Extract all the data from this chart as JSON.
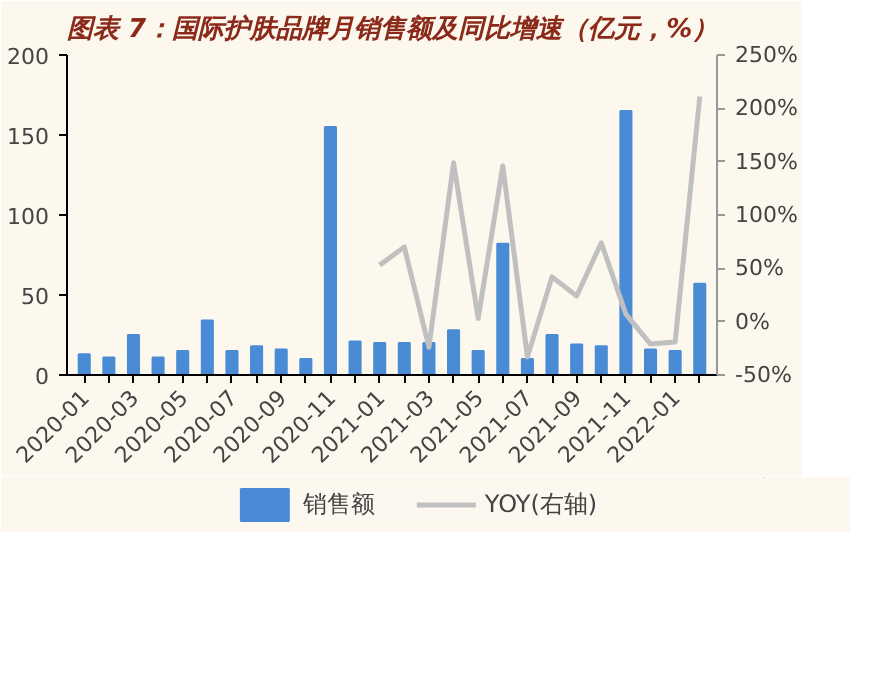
{
  "chart_data": {
    "type": "bar",
    "title": "图表 7：国际护肤品牌月销售额及同比增速（亿元，%）",
    "categories": [
      "2020-01",
      null,
      "2020-03",
      null,
      "2020-05",
      null,
      "2020-07",
      null,
      "2020-09",
      null,
      "2020-11",
      null,
      "2021-01",
      null,
      "2021-03",
      null,
      "2021-05",
      null,
      "2021-07",
      null,
      "2021-09",
      null,
      "2021-11",
      null,
      "2022-01",
      null
    ],
    "series": [
      {
        "name": "销售额",
        "color": "#4a8bd6",
        "values": [
          13,
          11,
          25,
          11,
          15,
          34,
          15,
          18,
          16,
          10,
          155,
          21,
          20,
          20,
          20,
          28,
          15,
          82,
          10,
          25,
          19,
          18,
          165,
          16,
          15,
          57
        ]
      },
      {
        "name": "YOY(右轴)",
        "type": "line",
        "axis": "y2",
        "color": "#c0c0c0",
        "values": [
          null,
          null,
          null,
          null,
          null,
          null,
          null,
          null,
          null,
          null,
          null,
          null,
          53,
          70,
          -24,
          149,
          3,
          146,
          -33,
          42,
          24,
          74,
          7,
          -21,
          -19,
          211
        ]
      }
    ],
    "ylim": [
      0,
      200
    ],
    "yticks": [
      0,
      50,
      100,
      150,
      200
    ],
    "y2lim": [
      -50,
      250
    ],
    "y2ticks": [
      {
        "value": -50,
        "label": "-50%"
      },
      {
        "value": 0,
        "label": "0%"
      },
      {
        "value": 50,
        "label": "50%"
      },
      {
        "value": 100,
        "label": "100%"
      },
      {
        "value": 150,
        "label": "150%"
      },
      {
        "value": 200,
        "label": "200%"
      },
      {
        "value": 250,
        "label": "250%"
      }
    ],
    "grid": false,
    "legend": "bottom"
  }
}
